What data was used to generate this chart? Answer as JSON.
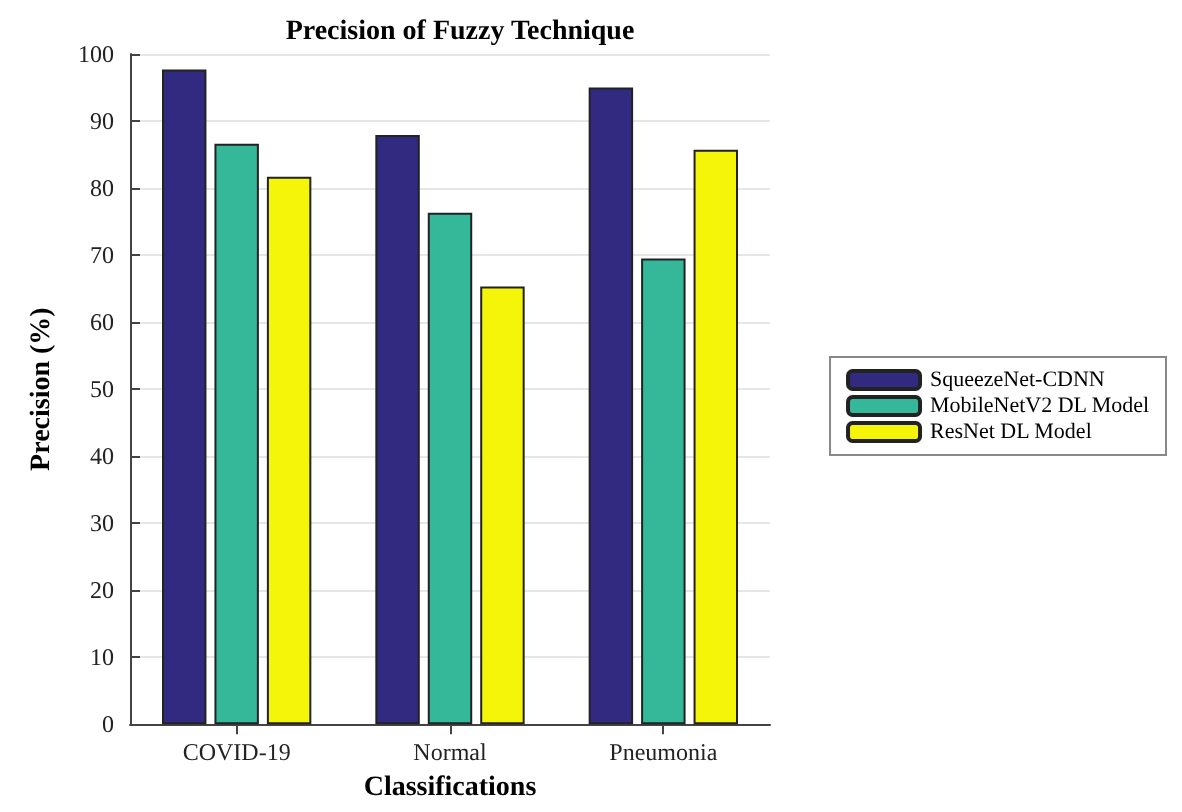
{
  "chart_data": {
    "type": "bar",
    "title": "Precision of Fuzzy Technique",
    "xlabel": "Classifications",
    "ylabel": "Precision (%)",
    "categories": [
      "COVID-19",
      "Normal",
      "Pneumonia"
    ],
    "series": [
      {
        "name": "SqueezeNet-CDNN",
        "color": "#322a80",
        "values": [
          97.7,
          87.9,
          95.0
        ]
      },
      {
        "name": "MobileNetV2 DL Model",
        "color": "#35b89a",
        "values": [
          86.6,
          76.3,
          69.5
        ]
      },
      {
        "name": "ResNet DL Model",
        "color": "#f5f50a",
        "values": [
          81.7,
          65.3,
          85.7
        ]
      }
    ],
    "ylim": [
      0,
      100
    ],
    "yticks": [
      0,
      10,
      20,
      30,
      40,
      50,
      60,
      70,
      80,
      90,
      100
    ],
    "grid": "y",
    "legend": "right"
  }
}
